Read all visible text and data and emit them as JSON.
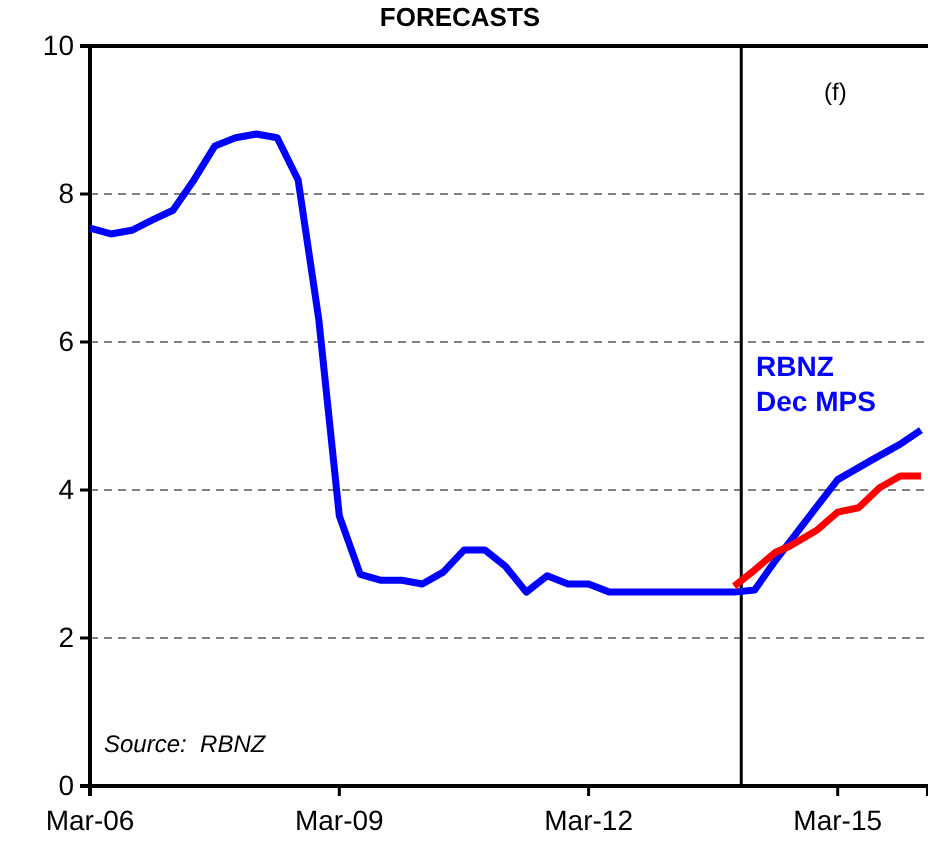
{
  "chart_data": {
    "type": "line",
    "title": "FORECASTS",
    "xlim": [
      "2006-03",
      "2016-04"
    ],
    "xticks": [
      {
        "value": "2006-03",
        "label": "Mar-06"
      },
      {
        "value": "2009-03",
        "label": "Mar-09"
      },
      {
        "value": "2012-03",
        "label": "Mar-12"
      },
      {
        "value": "2015-03",
        "label": "Mar-15"
      }
    ],
    "ylim": [
      0,
      10
    ],
    "yticks": [
      0,
      2,
      4,
      6,
      8,
      10
    ],
    "grid": "y",
    "legend": false,
    "line_style": "solid",
    "marker": "none",
    "series": [
      {
        "name": "RBNZ Dec MPS",
        "color": "#0000ff",
        "x": [
          "2006-03",
          "2006-06",
          "2006-09",
          "2006-12",
          "2007-03",
          "2007-06",
          "2007-09",
          "2007-12",
          "2008-03",
          "2008-06",
          "2008-09",
          "2008-12",
          "2009-03",
          "2009-06",
          "2009-09",
          "2009-12",
          "2010-03",
          "2010-06",
          "2010-09",
          "2010-12",
          "2011-03",
          "2011-06",
          "2011-09",
          "2011-12",
          "2012-03",
          "2012-06",
          "2013-12",
          "2014-03",
          "2014-06",
          "2014-10",
          "2015-03",
          "2015-08",
          "2015-12",
          "2016-03"
        ],
        "values": [
          7.54,
          7.46,
          7.51,
          7.65,
          7.78,
          8.19,
          8.65,
          8.76,
          8.81,
          8.76,
          8.19,
          6.3,
          3.65,
          2.86,
          2.78,
          2.78,
          2.73,
          2.89,
          3.19,
          3.19,
          2.97,
          2.62,
          2.84,
          2.73,
          2.73,
          2.62,
          2.62,
          2.65,
          3.05,
          3.54,
          4.14,
          4.41,
          4.62,
          4.81
        ]
      },
      {
        "color": "#ff0000",
        "x": [
          "2013-12",
          "2014-03",
          "2014-06",
          "2014-08",
          "2014-12",
          "2015-03",
          "2015-06",
          "2015-09",
          "2015-12",
          "2016-03"
        ],
        "values": [
          2.7,
          2.92,
          3.16,
          3.24,
          3.46,
          3.7,
          3.76,
          4.03,
          4.19,
          4.19
        ]
      }
    ],
    "ref_lines": [
      {
        "axis": "x",
        "value": "2014-01",
        "color": "#000000",
        "line_style": "solid"
      }
    ],
    "annotations": [
      "(f)",
      "Source:  RBNZ"
    ]
  }
}
